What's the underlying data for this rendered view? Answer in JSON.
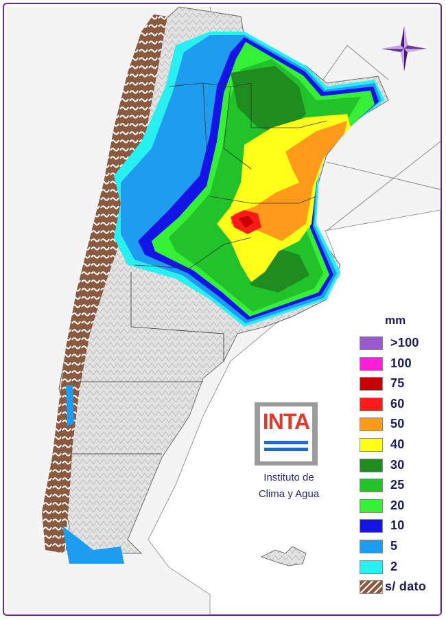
{
  "legend": {
    "title": "mm",
    "items": [
      {
        "label": ">100",
        "color": "#9b59d0"
      },
      {
        "label": "100",
        "color": "#ff1fd8"
      },
      {
        "label": "75",
        "color": "#c80000"
      },
      {
        "label": "60",
        "color": "#ff1a1a"
      },
      {
        "label": "50",
        "color": "#ff9a1a"
      },
      {
        "label": "40",
        "color": "#ffff1a"
      },
      {
        "label": "30",
        "color": "#1e8c1e"
      },
      {
        "label": "25",
        "color": "#22c22a"
      },
      {
        "label": "20",
        "color": "#36f036"
      },
      {
        "label": "10",
        "color": "#1414e6"
      },
      {
        "label": "5",
        "color": "#1e9cf0"
      },
      {
        "label": "2",
        "color": "#29f0f0"
      },
      {
        "label": "s/ dato",
        "color": "#8a5a40"
      }
    ]
  },
  "logo": {
    "brand": "INTA",
    "line1": "Instituto de",
    "line2": "Clima y Agua"
  },
  "compass": {
    "icon": "compass-rose-icon"
  }
}
